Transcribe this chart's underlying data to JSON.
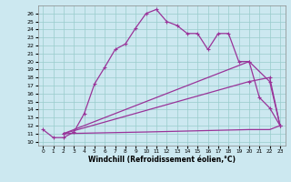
{
  "xlabel": "Windchill (Refroidissement éolien,°C)",
  "background_color": "#cce8f0",
  "line_color": "#993399",
  "grid_color": "#99cccc",
  "xlim": [
    -0.5,
    23.5
  ],
  "ylim": [
    9.5,
    27.0
  ],
  "xticks": [
    0,
    1,
    2,
    3,
    4,
    5,
    6,
    7,
    8,
    9,
    10,
    11,
    12,
    13,
    14,
    15,
    16,
    17,
    18,
    19,
    20,
    21,
    22,
    23
  ],
  "yticks": [
    10,
    11,
    12,
    13,
    14,
    15,
    16,
    17,
    18,
    19,
    20,
    21,
    22,
    23,
    24,
    25,
    26
  ],
  "line1_x": [
    0,
    1,
    2,
    3,
    4,
    5,
    6,
    7,
    8,
    9,
    10,
    11,
    12,
    13,
    14,
    15,
    16,
    17,
    18,
    19,
    20,
    21,
    22,
    23
  ],
  "line1_y": [
    11.5,
    10.5,
    10.5,
    11.2,
    13.5,
    17.2,
    19.3,
    21.5,
    22.2,
    24.2,
    26.0,
    26.5,
    25.0,
    24.5,
    23.5,
    23.5,
    21.5,
    23.5,
    23.5,
    20.0,
    20.0,
    15.5,
    14.2,
    12.0
  ],
  "line2_x": [
    2,
    20,
    22,
    23
  ],
  "line2_y": [
    11.0,
    20.0,
    17.5,
    12.0
  ],
  "line3_x": [
    2,
    20,
    22,
    23
  ],
  "line3_y": [
    11.0,
    17.5,
    18.0,
    12.0
  ],
  "line4_x": [
    2,
    10,
    20,
    22,
    23
  ],
  "line4_y": [
    11.0,
    11.2,
    11.5,
    11.5,
    12.0
  ]
}
